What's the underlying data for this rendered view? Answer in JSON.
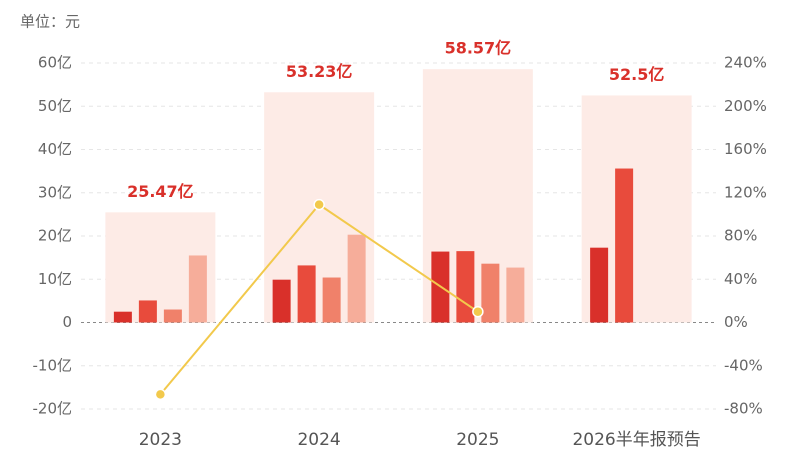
{
  "chart_data": {
    "type": "bar",
    "unit_note": "单位：元",
    "categories": [
      "2023",
      "2024",
      "2025",
      "2026半年报预告"
    ],
    "totals": {
      "color": "#fdebe6",
      "label_color": "#d9302a",
      "values": [
        25.47,
        53.23,
        58.57,
        52.5
      ],
      "value_labels": [
        "25.47亿",
        "53.23亿",
        "58.57亿",
        "52.5亿"
      ]
    },
    "series": [
      {
        "color": "#d9302a",
        "values": [
          2.5,
          9.9,
          16.4,
          17.3
        ]
      },
      {
        "color": "#e84b3c",
        "values": [
          5.1,
          13.2,
          16.5,
          35.6
        ]
      },
      {
        "color": "#f0816a",
        "values": [
          3.0,
          10.4,
          13.6,
          null
        ]
      },
      {
        "color": "#f6ad9a",
        "values": [
          15.5,
          20.3,
          12.7,
          null
        ]
      },
      {
        "type": "line",
        "axis": "y2",
        "color": "#f2c94c",
        "values": [
          -66.5,
          109,
          10,
          null
        ]
      }
    ],
    "ylim": [
      -20,
      60
    ],
    "yticks": [
      {
        "value": -20,
        "label": "-20亿"
      },
      {
        "value": -10,
        "label": "-10亿"
      },
      0,
      {
        "value": 10,
        "label": "10亿"
      },
      {
        "value": 20,
        "label": "20亿"
      },
      {
        "value": 30,
        "label": "30亿"
      },
      {
        "value": 40,
        "label": "40亿"
      },
      {
        "value": 50,
        "label": "50亿"
      },
      {
        "value": 60,
        "label": "60亿"
      }
    ],
    "y2lim": [
      -80,
      240
    ],
    "y2ticks": [
      {
        "value": -80,
        "label": "-80%"
      },
      {
        "value": -40,
        "label": "-40%"
      },
      {
        "value": 0,
        "label": "0%"
      },
      {
        "value": 40,
        "label": "40%"
      },
      {
        "value": 80,
        "label": "80%"
      },
      {
        "value": 120,
        "label": "120%"
      },
      {
        "value": 160,
        "label": "160%"
      },
      {
        "value": 200,
        "label": "200%"
      },
      {
        "value": 240,
        "label": "240%"
      }
    ],
    "grid": true
  }
}
